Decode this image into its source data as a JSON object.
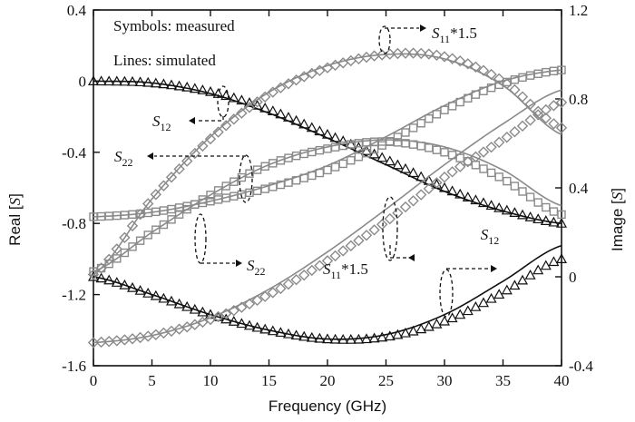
{
  "legend_notes": {
    "measured": "Symbols: measured",
    "simulated": "Lines: simulated"
  },
  "colors": {
    "s12": "#111111",
    "s11": "#8a8a8a",
    "s22": "#8a8a8a",
    "axis": "#111111"
  },
  "chart_data": {
    "type": "line",
    "xlabel": "Frequency (GHz)",
    "ylabel_left": {
      "text": "Real [",
      "italic": "S",
      "close": "]"
    },
    "ylabel_right": {
      "text": "Image [",
      "italic": "S",
      "close": "]"
    },
    "xlim": [
      0,
      40
    ],
    "ylim_left": [
      -1.6,
      0.4
    ],
    "ylim_right": [
      -0.4,
      1.2
    ],
    "x_ticks": [
      "0",
      "5",
      "10",
      "15",
      "20",
      "25",
      "30",
      "35",
      "40"
    ],
    "y_left_ticks": [
      "0.4",
      "0",
      "-0.4",
      "-0.8",
      "-1.2",
      "-1.6"
    ],
    "y_right_ticks": [
      "1.2",
      "0.8",
      "0.4",
      "0",
      "-0.4"
    ],
    "grid": false,
    "annotations": [
      {
        "id": "s12_real",
        "base": "S",
        "sub": "12",
        "suffix": "",
        "target": "S12 real (left axis)"
      },
      {
        "id": "s22_real",
        "base": "S",
        "sub": "22",
        "suffix": "",
        "target": "S22 real (left axis)"
      },
      {
        "id": "s22_imag",
        "base": "S",
        "sub": "22",
        "suffix": "",
        "target": "S22 imaginary (right axis)"
      },
      {
        "id": "s11_imag",
        "base": "S",
        "sub": "11",
        "suffix": "*1.5",
        "target": "S11*1.5 imaginary (right axis)"
      },
      {
        "id": "s11_real",
        "base": "S",
        "sub": "11",
        "suffix": "*1.5",
        "target": "S11*1.5 real (left axis)"
      },
      {
        "id": "s12_imag",
        "base": "S",
        "sub": "12",
        "suffix": "",
        "target": "S12 imaginary (right axis)"
      }
    ],
    "series": [
      {
        "id": "s12_real",
        "axis": "left",
        "marker": "triangle",
        "color": "#111111",
        "x": [
          0,
          5,
          10,
          15,
          20,
          25,
          30,
          35,
          40
        ],
        "measured": [
          0,
          -0.01,
          -0.06,
          -0.16,
          -0.3,
          -0.44,
          -0.6,
          -0.72,
          -0.8
        ],
        "simulated": [
          0,
          -0.01,
          -0.07,
          -0.18,
          -0.32,
          -0.47,
          -0.62,
          -0.73,
          -0.8
        ]
      },
      {
        "id": "s12_imag",
        "axis": "right",
        "marker": "triangle",
        "color": "#111111",
        "x": [
          0,
          5,
          10,
          15,
          20,
          25,
          30,
          35,
          40
        ],
        "measured": [
          0,
          -0.08,
          -0.17,
          -0.24,
          -0.28,
          -0.27,
          -0.2,
          -0.07,
          0.08
        ],
        "simulated": [
          0,
          -0.08,
          -0.17,
          -0.24,
          -0.28,
          -0.26,
          -0.17,
          -0.02,
          0.14
        ]
      },
      {
        "id": "s11_real",
        "axis": "left",
        "marker": "diamond",
        "color": "#8a8a8a",
        "x": [
          0,
          5,
          10,
          15,
          20,
          25,
          30,
          35,
          40
        ],
        "measured": [
          -1.47,
          -1.43,
          -1.34,
          -1.2,
          -1.01,
          -0.79,
          -0.54,
          -0.33,
          -0.12
        ],
        "simulated": [
          -1.47,
          -1.43,
          -1.33,
          -1.17,
          -0.96,
          -0.72,
          -0.47,
          -0.24,
          -0.05
        ]
      },
      {
        "id": "s11_imag",
        "axis": "right",
        "marker": "diamond",
        "color": "#8a8a8a",
        "x": [
          0,
          5,
          10,
          15,
          20,
          25,
          30,
          35,
          40
        ],
        "measured": [
          0.01,
          0.35,
          0.62,
          0.82,
          0.94,
          1.0,
          0.99,
          0.88,
          0.67
        ],
        "simulated": [
          0.01,
          0.35,
          0.63,
          0.83,
          0.95,
          1.0,
          0.98,
          0.86,
          0.64
        ]
      },
      {
        "id": "s22_real",
        "axis": "left",
        "marker": "square",
        "color": "#8a8a8a",
        "x": [
          0,
          5,
          10,
          15,
          20,
          25,
          30,
          35,
          40
        ],
        "measured": [
          -1.07,
          -0.85,
          -0.64,
          -0.47,
          -0.38,
          -0.34,
          -0.4,
          -0.55,
          -0.75
        ],
        "simulated": [
          -1.07,
          -0.85,
          -0.64,
          -0.47,
          -0.37,
          -0.33,
          -0.37,
          -0.5,
          -0.7
        ]
      },
      {
        "id": "s22_imag",
        "axis": "right",
        "marker": "square",
        "color": "#8a8a8a",
        "x": [
          0,
          5,
          10,
          15,
          20,
          25,
          30,
          35,
          40
        ],
        "measured": [
          0.27,
          0.29,
          0.34,
          0.4,
          0.48,
          0.6,
          0.75,
          0.87,
          0.93
        ],
        "simulated": [
          0.27,
          0.29,
          0.34,
          0.41,
          0.5,
          0.63,
          0.77,
          0.88,
          0.93
        ]
      }
    ]
  }
}
